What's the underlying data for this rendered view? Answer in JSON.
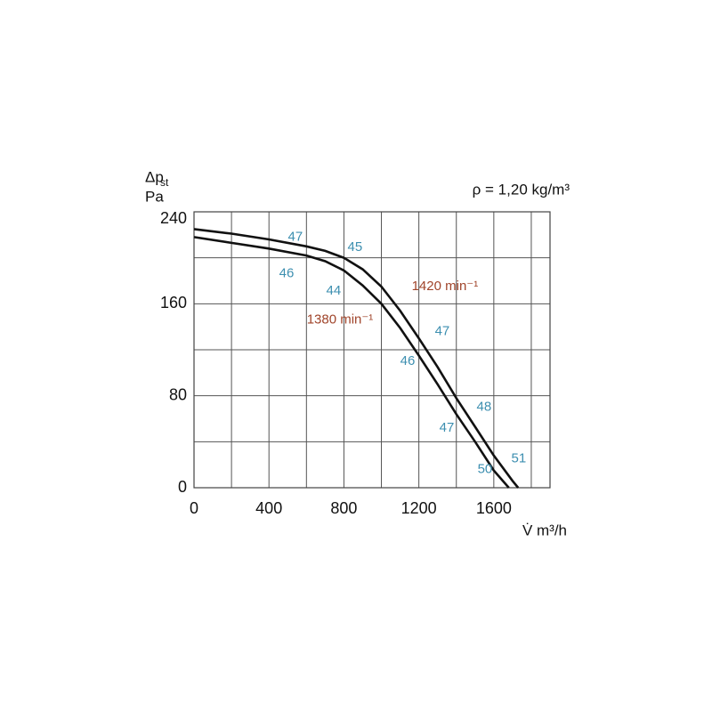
{
  "chart_data": {
    "type": "line",
    "ylabel": "Δp",
    "ylabel_sub": "st",
    "yunit": "Pa",
    "xlabel": "V̇ m³/h",
    "condition": "ρ = 1,20 kg/m³",
    "xlim": [
      0,
      1900
    ],
    "ylim": [
      0,
      240
    ],
    "xticks": [
      0,
      400,
      800,
      1200,
      1600
    ],
    "yticks": [
      0,
      80,
      160,
      240
    ],
    "xgrid_minor": [
      200,
      600,
      1000,
      1400,
      1800
    ],
    "ygrid_minor": [
      40,
      120,
      200
    ],
    "grid": true,
    "series": [
      {
        "name": "1420 min⁻¹",
        "color": "#111111",
        "x": [
          0,
          200,
          400,
          600,
          700,
          800,
          900,
          1000,
          1100,
          1200,
          1300,
          1400,
          1500,
          1600,
          1700,
          1730
        ],
        "values": [
          225,
          221,
          216,
          210,
          206,
          200,
          190,
          175,
          154,
          130,
          105,
          78,
          53,
          28,
          6,
          0
        ],
        "label_x": 1339,
        "label_y": 175
      },
      {
        "name": "1380 min⁻¹",
        "color": "#111111",
        "x": [
          0,
          200,
          400,
          600,
          700,
          800,
          900,
          1000,
          1100,
          1200,
          1300,
          1400,
          1500,
          1600,
          1680
        ],
        "values": [
          218,
          213,
          208,
          202,
          197,
          189,
          176,
          160,
          139,
          115,
          90,
          64,
          40,
          15,
          0
        ],
        "label_x": 779,
        "label_y": 146
      }
    ],
    "annotations": [
      {
        "text": "47",
        "x": 541,
        "y": 218
      },
      {
        "text": "45",
        "x": 859,
        "y": 209
      },
      {
        "text": "46",
        "x": 494,
        "y": 186
      },
      {
        "text": "44",
        "x": 745,
        "y": 171
      },
      {
        "text": "47",
        "x": 1325,
        "y": 136
      },
      {
        "text": "46",
        "x": 1140,
        "y": 110
      },
      {
        "text": "48",
        "x": 1548,
        "y": 70
      },
      {
        "text": "47",
        "x": 1349,
        "y": 52
      },
      {
        "text": "51",
        "x": 1733,
        "y": 25
      },
      {
        "text": "50",
        "x": 1553,
        "y": 16
      }
    ]
  }
}
